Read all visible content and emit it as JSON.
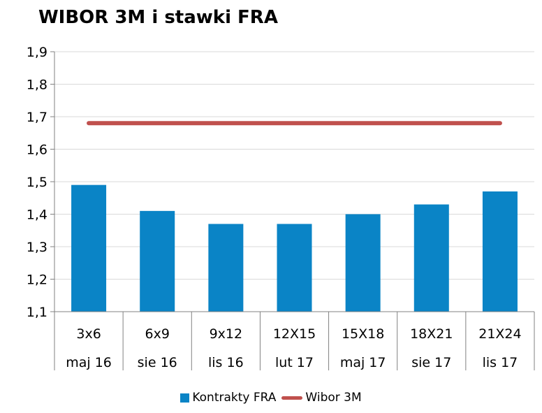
{
  "colors": {
    "bar": "#0a84c6",
    "line": "#c0504d",
    "grid": "#d9d9d9",
    "axis": "#808080"
  },
  "chart_data": {
    "type": "bar",
    "title": "WIBOR 3M i stawki FRA",
    "categories": [
      "3x6",
      "6x9",
      "9x12",
      "12X15",
      "15X18",
      "18X21",
      "21X24"
    ],
    "subcategories": [
      "maj 16",
      "sie 16",
      "lis 16",
      "lut 17",
      "maj 17",
      "sie 17",
      "lis 17"
    ],
    "series": [
      {
        "name": "Kontrakty FRA",
        "type": "bar",
        "values": [
          1.49,
          1.41,
          1.37,
          1.37,
          1.4,
          1.43,
          1.47
        ]
      },
      {
        "name": "Wibor 3M",
        "type": "line",
        "values": [
          1.68,
          1.68,
          1.68,
          1.68,
          1.68,
          1.68,
          1.68
        ]
      }
    ],
    "yticks": [
      "1,9",
      "1,8",
      "1,7",
      "1,6",
      "1,5",
      "1,4",
      "1,3",
      "1,2",
      "1,1"
    ],
    "ylim": [
      1.1,
      1.9
    ],
    "grid": true,
    "legend": "bottom"
  }
}
